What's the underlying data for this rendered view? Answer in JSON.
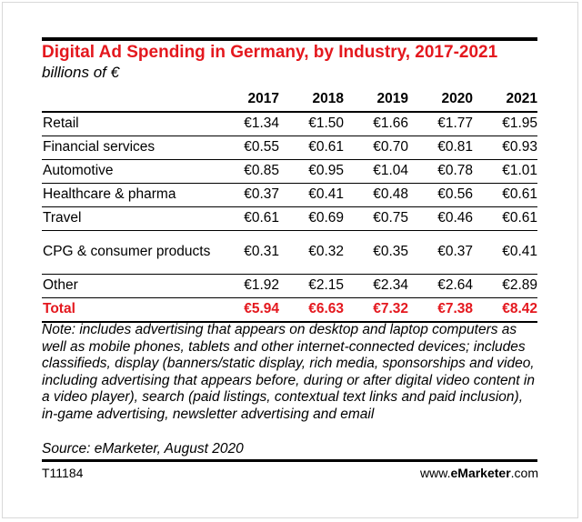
{
  "chart_data": {
    "type": "table",
    "title": "Digital Ad Spending in Germany, by Industry, 2017-2021",
    "subtitle": "billions of €",
    "columns": [
      "2017",
      "2018",
      "2019",
      "2020",
      "2021"
    ],
    "rows": [
      {
        "category": "Retail",
        "values": [
          "€1.34",
          "€1.50",
          "€1.66",
          "€1.77",
          "€1.95"
        ]
      },
      {
        "category": "Financial services",
        "values": [
          "€0.55",
          "€0.61",
          "€0.70",
          "€0.81",
          "€0.93"
        ]
      },
      {
        "category": "Automotive",
        "values": [
          "€0.85",
          "€0.95",
          "€1.04",
          "€0.78",
          "€1.01"
        ]
      },
      {
        "category": "Healthcare & pharma",
        "values": [
          "€0.37",
          "€0.41",
          "€0.48",
          "€0.56",
          "€0.61"
        ]
      },
      {
        "category": "Travel",
        "values": [
          "€0.61",
          "€0.69",
          "€0.75",
          "€0.46",
          "€0.61"
        ]
      },
      {
        "category": "CPG & consumer products",
        "values": [
          "€0.31",
          "€0.32",
          "€0.35",
          "€0.37",
          "€0.41"
        ]
      },
      {
        "category": "Other",
        "values": [
          "€1.92",
          "€2.15",
          "€2.34",
          "€2.64",
          "€2.89"
        ]
      }
    ],
    "total": {
      "category": "Total",
      "values": [
        "€5.94",
        "€6.63",
        "€7.32",
        "€7.38",
        "€8.42"
      ]
    }
  },
  "colors": {
    "accent": "#e4181e",
    "rule": "#000000"
  },
  "note": "Note: includes advertising that appears on desktop and laptop computers as well as mobile phones, tablets and other internet-connected devices; includes classifieds, display (banners/static display, rich media, sponsorships and video, including advertising that appears before, during or after digital video content in a video player), search (paid listings, contextual text links and paid inclusion), in-game advertising, newsletter advertising and email",
  "source": "Source: eMarketer, August 2020",
  "footer": {
    "code": "T11184",
    "site_prefix": "www.",
    "site_brand": "eMarketer",
    "site_suffix": ".com"
  }
}
